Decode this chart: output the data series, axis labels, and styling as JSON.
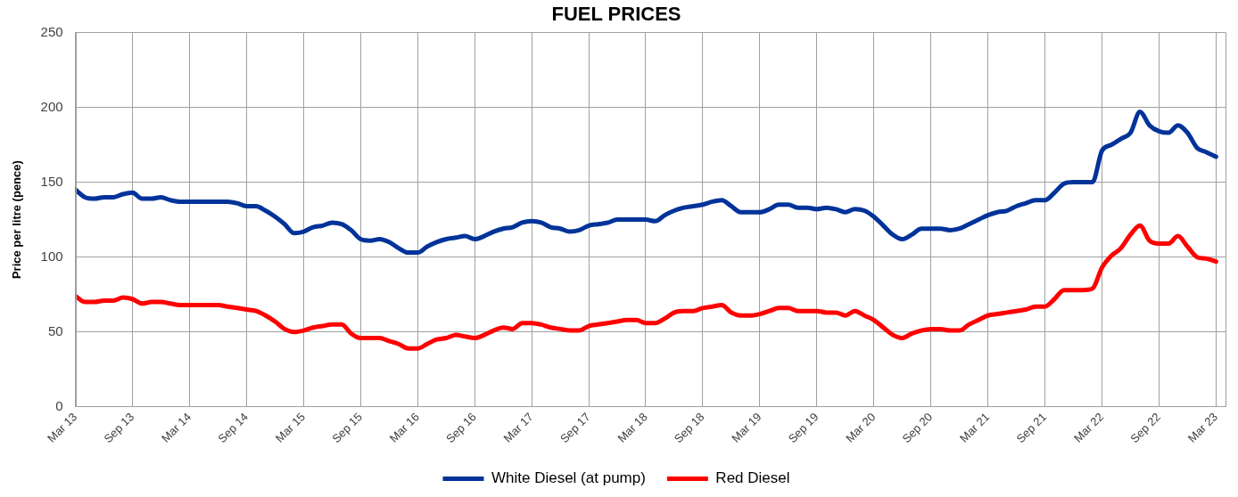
{
  "chart_data": {
    "type": "line",
    "title": "FUEL PRICES",
    "ylabel": "Price per litre (pence)",
    "x": [
      "2013-03",
      "2013-04",
      "2013-05",
      "2013-06",
      "2013-07",
      "2013-08",
      "2013-09",
      "2013-10",
      "2013-11",
      "2013-12",
      "2014-01",
      "2014-02",
      "2014-03",
      "2014-04",
      "2014-05",
      "2014-06",
      "2014-07",
      "2014-08",
      "2014-09",
      "2014-10",
      "2014-11",
      "2014-12",
      "2015-01",
      "2015-02",
      "2015-03",
      "2015-04",
      "2015-05",
      "2015-06",
      "2015-07",
      "2015-08",
      "2015-09",
      "2015-10",
      "2015-11",
      "2015-12",
      "2016-01",
      "2016-02",
      "2016-03",
      "2016-04",
      "2016-05",
      "2016-06",
      "2016-07",
      "2016-08",
      "2016-09",
      "2016-10",
      "2016-11",
      "2016-12",
      "2017-01",
      "2017-02",
      "2017-03",
      "2017-04",
      "2017-05",
      "2017-06",
      "2017-07",
      "2017-08",
      "2017-09",
      "2017-10",
      "2017-11",
      "2017-12",
      "2018-01",
      "2018-02",
      "2018-03",
      "2018-04",
      "2018-05",
      "2018-06",
      "2018-07",
      "2018-08",
      "2018-09",
      "2018-10",
      "2018-11",
      "2018-12",
      "2019-01",
      "2019-02",
      "2019-03",
      "2019-04",
      "2019-05",
      "2019-06",
      "2019-07",
      "2019-08",
      "2019-09",
      "2019-10",
      "2019-11",
      "2019-12",
      "2020-01",
      "2020-02",
      "2020-03",
      "2020-04",
      "2020-05",
      "2020-06",
      "2020-07",
      "2020-08",
      "2020-09",
      "2020-10",
      "2020-11",
      "2020-12",
      "2021-01",
      "2021-02",
      "2021-03",
      "2021-04",
      "2021-05",
      "2021-06",
      "2021-07",
      "2021-08",
      "2021-09",
      "2021-10",
      "2021-11",
      "2021-12",
      "2022-01",
      "2022-02",
      "2022-03",
      "2022-04",
      "2022-05",
      "2022-06",
      "2022-07",
      "2022-08",
      "2022-09",
      "2022-10",
      "2022-11",
      "2022-12",
      "2023-01",
      "2023-02",
      "2023-03"
    ],
    "series": [
      {
        "name": "White Diesel (at pump)",
        "color": "#003399",
        "values": [
          145,
          140,
          139,
          140,
          140,
          142,
          143,
          139,
          139,
          140,
          138,
          137,
          137,
          137,
          137,
          137,
          137,
          136,
          134,
          134,
          131,
          127,
          122,
          116,
          117,
          120,
          121,
          123,
          122,
          118,
          112,
          111,
          112,
          110,
          106,
          103,
          103,
          107,
          110,
          112,
          113,
          114,
          112,
          114,
          117,
          119,
          120,
          123,
          124,
          123,
          120,
          119,
          117,
          118,
          121,
          122,
          123,
          125,
          125,
          125,
          125,
          124,
          128,
          131,
          133,
          134,
          135,
          137,
          138,
          134,
          130,
          130,
          130,
          132,
          135,
          135,
          133,
          133,
          132,
          133,
          132,
          130,
          132,
          131,
          127,
          121,
          115,
          112,
          115,
          119,
          119,
          119,
          118,
          119,
          122,
          125,
          128,
          130,
          131,
          134,
          136,
          138,
          138,
          143,
          149,
          150,
          150,
          150,
          171,
          175,
          179,
          183,
          197,
          188,
          184,
          183,
          188,
          183,
          173,
          170,
          167
        ]
      },
      {
        "name": "Red Diesel",
        "color": "#ff0000",
        "values": [
          74,
          70,
          70,
          71,
          71,
          73,
          72,
          69,
          70,
          70,
          69,
          68,
          68,
          68,
          68,
          68,
          67,
          66,
          65,
          64,
          61,
          57,
          52,
          50,
          51,
          53,
          54,
          55,
          55,
          49,
          46,
          46,
          46,
          44,
          42,
          39,
          39,
          42,
          45,
          46,
          48,
          47,
          46,
          48,
          51,
          53,
          52,
          56,
          56,
          55,
          53,
          52,
          51,
          51,
          54,
          55,
          56,
          57,
          58,
          58,
          56,
          56,
          59,
          63,
          64,
          64,
          66,
          67,
          68,
          63,
          61,
          61,
          62,
          64,
          66,
          66,
          64,
          64,
          64,
          63,
          63,
          61,
          64,
          61,
          58,
          53,
          48,
          46,
          49,
          51,
          52,
          52,
          51,
          51,
          55,
          58,
          61,
          62,
          63,
          64,
          65,
          67,
          67,
          72,
          78,
          78,
          78,
          79,
          93,
          101,
          106,
          115,
          121,
          111,
          109,
          109,
          114,
          107,
          100,
          99,
          97
        ]
      }
    ],
    "xlim": [
      "2013-03",
      "2023-04"
    ],
    "xticks": [
      {
        "value": "2013-03",
        "label": "Mar 13"
      },
      {
        "value": "2013-09",
        "label": "Sep 13"
      },
      {
        "value": "2014-03",
        "label": "Mar 14"
      },
      {
        "value": "2014-09",
        "label": "Sep 14"
      },
      {
        "value": "2015-03",
        "label": "Mar 15"
      },
      {
        "value": "2015-09",
        "label": "Sep 15"
      },
      {
        "value": "2016-03",
        "label": "Mar 16"
      },
      {
        "value": "2016-09",
        "label": "Sep 16"
      },
      {
        "value": "2017-03",
        "label": "Mar 17"
      },
      {
        "value": "2017-09",
        "label": "Sep 17"
      },
      {
        "value": "2018-03",
        "label": "Mar 18"
      },
      {
        "value": "2018-09",
        "label": "Sep 18"
      },
      {
        "value": "2019-03",
        "label": "Mar 19"
      },
      {
        "value": "2019-09",
        "label": "Sep 19"
      },
      {
        "value": "2020-03",
        "label": "Mar 20"
      },
      {
        "value": "2020-09",
        "label": "Sep 20"
      },
      {
        "value": "2021-03",
        "label": "Mar 21"
      },
      {
        "value": "2021-09",
        "label": "Sep 21"
      },
      {
        "value": "2022-03",
        "label": "Mar 22"
      },
      {
        "value": "2022-09",
        "label": "Sep 22"
      },
      {
        "value": "2023-03",
        "label": "Mar 23"
      }
    ],
    "ylim": [
      0,
      250
    ],
    "yticks": [
      0,
      50,
      100,
      150,
      200,
      250
    ],
    "grid": true,
    "legend": "bottom"
  }
}
